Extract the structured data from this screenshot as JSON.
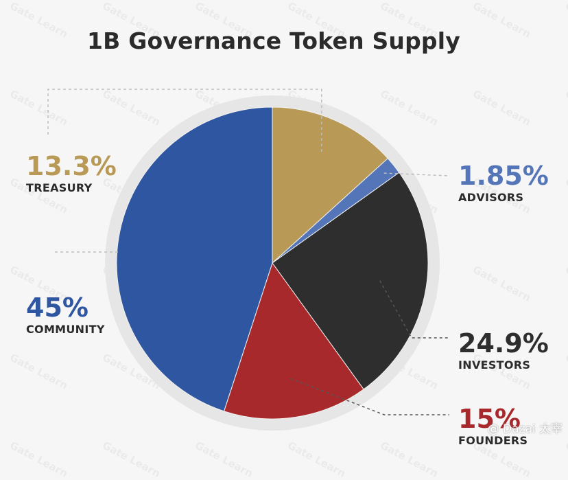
{
  "chart_data": {
    "type": "pie",
    "title": "1B Governance Token Supply",
    "slices": [
      {
        "key": "treasury",
        "label": "TREASURY",
        "pct_label": "13.3%",
        "value": 13.3,
        "color": "#b89a56"
      },
      {
        "key": "advisors",
        "label": "ADVISORS",
        "pct_label": "1.85%",
        "value": 1.85,
        "color": "#5476b8"
      },
      {
        "key": "investors",
        "label": "INVESTORS",
        "pct_label": "24.9%",
        "value": 24.9,
        "color": "#2e2e2e"
      },
      {
        "key": "founders",
        "label": "FOUNDERS",
        "pct_label": "15%",
        "value": 15,
        "color": "#a8292b"
      },
      {
        "key": "community",
        "label": "COMMUNITY",
        "pct_label": "45%",
        "value": 45,
        "color": "#2f56a0"
      }
    ],
    "legend": "none"
  },
  "branding": {
    "pattern_text": "Gate Learn",
    "watermark": "@ Dazai 太宰"
  }
}
